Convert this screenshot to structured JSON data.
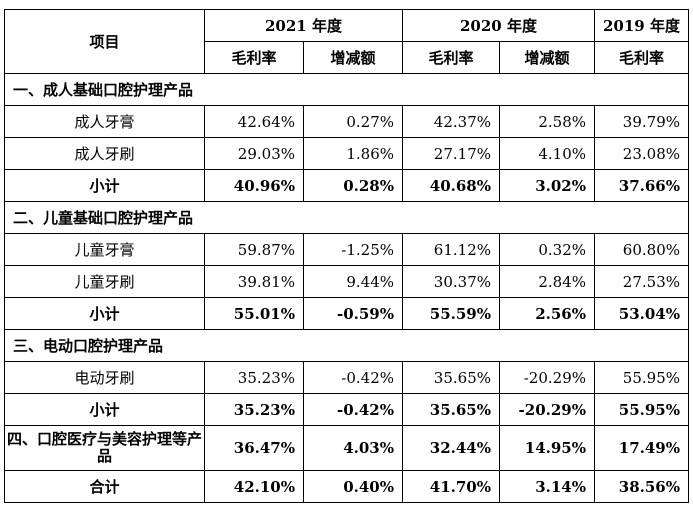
{
  "header": {
    "item": "项目",
    "year_2021": "2021 年度",
    "year_2020": "2020 年度",
    "year_2019": "2019 年度",
    "gross_margin": "毛利率",
    "change": "增减额"
  },
  "sections": [
    {
      "title": "一、成人基础口腔护理产品",
      "rows": [
        {
          "name": "成人牙膏",
          "v": [
            "42.64%",
            "0.27%",
            "42.37%",
            "2.58%",
            "39.79%"
          ]
        },
        {
          "name": "成人牙刷",
          "v": [
            "29.03%",
            "1.86%",
            "27.17%",
            "4.10%",
            "23.08%"
          ]
        }
      ],
      "subtotal": {
        "name": "小计",
        "v": [
          "40.96%",
          "0.28%",
          "40.68%",
          "3.02%",
          "37.66%"
        ]
      }
    },
    {
      "title": "二、儿童基础口腔护理产品",
      "rows": [
        {
          "name": "儿童牙膏",
          "v": [
            "59.87%",
            "-1.25%",
            "61.12%",
            "0.32%",
            "60.80%"
          ]
        },
        {
          "name": "儿童牙刷",
          "v": [
            "39.81%",
            "9.44%",
            "30.37%",
            "2.84%",
            "27.53%"
          ]
        }
      ],
      "subtotal": {
        "name": "小计",
        "v": [
          "55.01%",
          "-0.59%",
          "55.59%",
          "2.56%",
          "53.04%"
        ]
      }
    },
    {
      "title": "三、电动口腔护理产品",
      "rows": [
        {
          "name": "电动牙刷",
          "v": [
            "35.23%",
            "-0.42%",
            "35.65%",
            "-20.29%",
            "55.95%"
          ]
        }
      ],
      "subtotal": {
        "name": "小计",
        "v": [
          "35.23%",
          "-0.42%",
          "35.65%",
          "-20.29%",
          "55.95%"
        ]
      }
    }
  ],
  "section4": {
    "name": "四、口腔医疗与美容护理等产品",
    "v": [
      "36.47%",
      "4.03%",
      "32.44%",
      "14.95%",
      "17.49%"
    ]
  },
  "total": {
    "name": "合计",
    "v": [
      "42.10%",
      "0.40%",
      "41.70%",
      "3.14%",
      "38.56%"
    ]
  }
}
